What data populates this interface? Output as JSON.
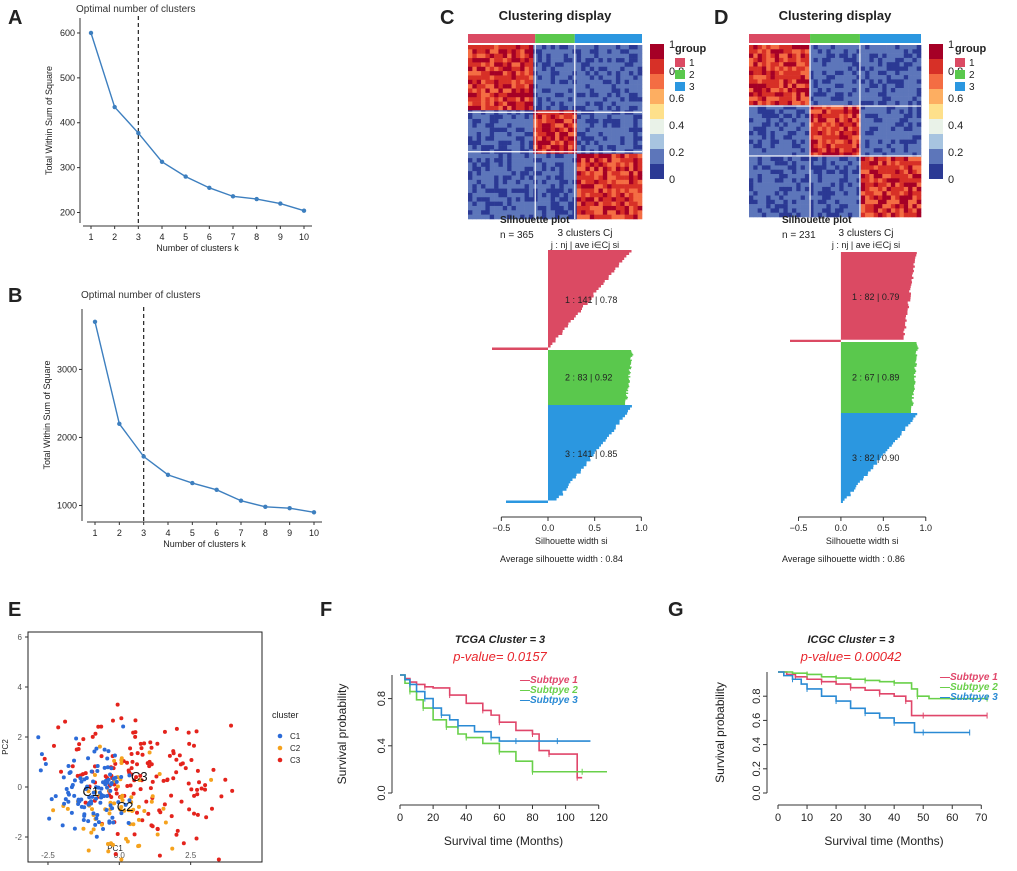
{
  "colors": {
    "elbow_line": "#3d7fbf",
    "group1": "#db4a63",
    "group2": "#5ac84d",
    "group3": "#2b97e0",
    "pca_c1": "#2c6bd8",
    "pca_c2": "#f5a21d",
    "pca_c3": "#e4231c",
    "km1": "#e0466a",
    "km2": "#69d04a",
    "km3": "#2a8ad4",
    "pvalue": "#e8262d"
  },
  "chart_data": [
    {
      "id": "A",
      "type": "line",
      "panel_label": "A",
      "title": "Optimal number of clusters",
      "xlabel": "Number of clusters k",
      "ylabel": "Total Within Sum of Square",
      "x": [
        1,
        2,
        3,
        4,
        5,
        6,
        7,
        8,
        9,
        10
      ],
      "y": [
        600,
        435,
        377,
        313,
        280,
        255,
        236,
        230,
        220,
        204
      ],
      "xticks": [
        "1",
        "2",
        "3",
        "4",
        "5",
        "6",
        "7",
        "8",
        "9",
        "10"
      ],
      "yticks": [
        "200",
        "300",
        "400",
        "500",
        "600"
      ],
      "ylim": [
        190,
        620
      ],
      "vline_x": 3
    },
    {
      "id": "B",
      "type": "line",
      "panel_label": "B",
      "title": "Optimal number of clusters",
      "xlabel": "Number of clusters k",
      "ylabel": "Total Within Sum of Square",
      "x": [
        1,
        2,
        3,
        4,
        5,
        6,
        7,
        8,
        9,
        10
      ],
      "y": [
        3700,
        2200,
        1720,
        1450,
        1330,
        1230,
        1070,
        980,
        960,
        900
      ],
      "xticks": [
        "1",
        "2",
        "3",
        "4",
        "5",
        "6",
        "7",
        "8",
        "9",
        "10"
      ],
      "yticks": [
        "1000",
        "2000",
        "3000"
      ],
      "ylim": [
        860,
        3800
      ],
      "vline_x": 3
    },
    {
      "id": "C",
      "type": "heatmap",
      "panel_label": "C",
      "title": "Clustering display",
      "group_sizes": [
        141,
        83,
        141
      ],
      "legend_title": "group",
      "legend_groups": [
        "1",
        "2",
        "3"
      ],
      "colorbar_ticks": [
        "1",
        "0.8",
        "0.6",
        "0.4",
        "0.2",
        "0"
      ]
    },
    {
      "id": "D",
      "type": "heatmap",
      "panel_label": "D",
      "title": "Clustering display",
      "group_sizes": [
        82,
        67,
        82
      ],
      "legend_title": "group",
      "legend_groups": [
        "1",
        "2",
        "3"
      ],
      "colorbar_ticks": [
        "1",
        "0.8",
        "0.6",
        "0.4",
        "0.2",
        "0"
      ]
    },
    {
      "id": "Csil",
      "type": "bar",
      "title": "Silhouette plot",
      "n_label": "n = 365",
      "header": "3  clusters  Cj",
      "subheader": "j :  nj | ave i∈Cj  si",
      "clusters": [
        {
          "j": "1",
          "n": "141",
          "ave": "0.78",
          "label": "1 :   141  |  0.78"
        },
        {
          "j": "2",
          "n": "83",
          "ave": "0.92",
          "label": "2 :   83  |  0.92"
        },
        {
          "j": "3",
          "n": "141",
          "ave": "0.85",
          "label": "3 :   141  |  0.85"
        }
      ],
      "xticks": [
        "−0.5",
        "0.0",
        "0.5",
        "1.0"
      ],
      "xlim": [
        -0.6,
        1.05
      ],
      "xlabel": "Silhouette width si",
      "footer": "Average silhouette width :  0.84"
    },
    {
      "id": "Dsil",
      "type": "bar",
      "title": "Silhouette plot",
      "n_label": "n = 231",
      "header": "3  clusters  Cj",
      "subheader": "j :  nj | ave i∈Cj  si",
      "clusters": [
        {
          "j": "1",
          "n": "82",
          "ave": "0.79",
          "label": "1 :   82  |  0.79"
        },
        {
          "j": "2",
          "n": "67",
          "ave": "0.89",
          "label": "2 :   67  |  0.89"
        },
        {
          "j": "3",
          "n": "82",
          "ave": "0.90",
          "label": "3 :   82  |  0.90"
        }
      ],
      "xticks": [
        "−0.5",
        "0.0",
        "0.5",
        "1.0"
      ],
      "xlim": [
        -0.6,
        1.05
      ],
      "xlabel": "Silhouette width si",
      "footer": "Average silhouette width :  0.86"
    },
    {
      "id": "E",
      "type": "scatter",
      "panel_label": "E",
      "xlabel": "PC1",
      "ylabel": "PC2",
      "xticks": [
        "-2.5",
        "0.0",
        "2.5"
      ],
      "yticks": [
        "-2",
        "0",
        "2",
        "4",
        "6"
      ],
      "xlim": [
        -3.2,
        5.0
      ],
      "ylim": [
        -3.0,
        6.2
      ],
      "legend_title": "cluster",
      "legend": [
        "C1",
        "C2",
        "C3"
      ],
      "centroid_labels": [
        "C1",
        "C2",
        "C3"
      ],
      "centroids": [
        [
          -1.0,
          -0.2
        ],
        [
          0.2,
          -0.8
        ],
        [
          0.7,
          0.4
        ]
      ]
    },
    {
      "id": "F",
      "type": "line",
      "panel_label": "F",
      "title": "TCGA Cluster = 3",
      "pvalue": "p-value= 0.0157",
      "xlabel": "Survival time (Months)",
      "ylabel": "Survival probability",
      "xticks": [
        "0",
        "20",
        "40",
        "60",
        "80",
        "100",
        "120"
      ],
      "yticks": [
        "0.0",
        "0.4",
        "0.8"
      ],
      "xlim": [
        0,
        125
      ],
      "ylim": [
        0,
        1.0
      ],
      "series": [
        {
          "name": "Subtpye 1",
          "x": [
            0,
            3,
            6,
            10,
            15,
            20,
            30,
            40,
            50,
            55,
            60,
            70,
            80,
            84,
            90,
            100,
            107,
            110
          ],
          "y": [
            1.0,
            0.97,
            0.94,
            0.92,
            0.9,
            0.89,
            0.83,
            0.76,
            0.7,
            0.66,
            0.6,
            0.53,
            0.5,
            0.36,
            0.33,
            0.33,
            0.13,
            0.13
          ]
        },
        {
          "name": "Subtpye 2",
          "x": [
            0,
            3,
            6,
            10,
            14,
            20,
            28,
            35,
            40,
            50,
            60,
            70,
            80,
            100,
            110,
            125
          ],
          "y": [
            1.0,
            0.93,
            0.86,
            0.79,
            0.72,
            0.62,
            0.56,
            0.5,
            0.47,
            0.42,
            0.35,
            0.27,
            0.18,
            0.18,
            0.18,
            0.18
          ]
        },
        {
          "name": "Subtpye 3",
          "x": [
            0,
            3,
            6,
            10,
            15,
            20,
            25,
            30,
            35,
            45,
            55,
            60,
            70,
            80,
            95,
            115
          ],
          "y": [
            1.0,
            0.96,
            0.92,
            0.86,
            0.8,
            0.72,
            0.66,
            0.62,
            0.57,
            0.52,
            0.47,
            0.44,
            0.44,
            0.44,
            0.44,
            0.44
          ]
        }
      ]
    },
    {
      "id": "G",
      "type": "line",
      "panel_label": "G",
      "title": "ICGC Cluster = 3",
      "pvalue": "p-value= 0.00042",
      "xlabel": "Survival time (Months)",
      "ylabel": "Survival probability",
      "xticks": [
        "0",
        "10",
        "20",
        "30",
        "40",
        "50",
        "60",
        "70"
      ],
      "yticks": [
        "0.0",
        "0.2",
        "0.4",
        "0.6",
        "0.8"
      ],
      "xlim": [
        0,
        73
      ],
      "ylim": [
        0,
        1.0
      ],
      "series": [
        {
          "name": "Subtpye 1",
          "x": [
            0,
            3,
            6,
            10,
            15,
            20,
            25,
            30,
            35,
            40,
            44,
            46,
            50,
            60,
            72
          ],
          "y": [
            1.0,
            0.98,
            0.96,
            0.94,
            0.92,
            0.9,
            0.87,
            0.85,
            0.82,
            0.8,
            0.76,
            0.64,
            0.64,
            0.64,
            0.64
          ]
        },
        {
          "name": "Subtpye 2",
          "x": [
            0,
            5,
            10,
            15,
            20,
            25,
            30,
            35,
            40,
            46,
            48,
            52,
            72
          ],
          "y": [
            1.0,
            0.99,
            0.98,
            0.96,
            0.95,
            0.94,
            0.93,
            0.92,
            0.91,
            0.86,
            0.8,
            0.78,
            0.78
          ]
        },
        {
          "name": "Subtpye 3",
          "x": [
            0,
            2,
            5,
            8,
            10,
            15,
            20,
            25,
            30,
            35,
            40,
            47,
            50,
            60,
            66
          ],
          "y": [
            1.0,
            0.97,
            0.94,
            0.9,
            0.86,
            0.8,
            0.76,
            0.7,
            0.66,
            0.62,
            0.58,
            0.5,
            0.5,
            0.5,
            0.5
          ]
        }
      ]
    }
  ]
}
